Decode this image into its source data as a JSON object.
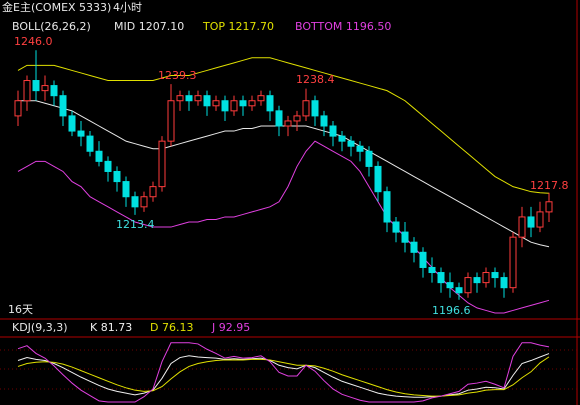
{
  "chart_data": {
    "type": "candlestick",
    "header": {
      "symbol": "金E主(COMEX 5333)",
      "period": "4小时"
    },
    "indicator": {
      "name": "BOLL(26,26,2)",
      "mid": "MID 1207.10",
      "top": "TOP 1217.70",
      "bottom": "BOTTOM 1196.50"
    },
    "annotations": [
      "1246.0",
      "1239.3",
      "1238.4",
      "1213.4",
      "1217.8",
      "1196.6"
    ],
    "period_note": "16天",
    "ylim": [
      1193,
      1250
    ],
    "ohlc": [
      [
        1233,
        1238,
        1231,
        1236
      ],
      [
        1236,
        1241,
        1234,
        1240
      ],
      [
        1240,
        1246,
        1236,
        1238
      ],
      [
        1238,
        1241,
        1236,
        1239
      ],
      [
        1239,
        1240,
        1235,
        1237
      ],
      [
        1237,
        1238,
        1231,
        1233
      ],
      [
        1233,
        1234,
        1229,
        1230
      ],
      [
        1230,
        1232,
        1227,
        1229
      ],
      [
        1229,
        1230,
        1225,
        1226
      ],
      [
        1226,
        1228,
        1223,
        1224
      ],
      [
        1224,
        1225,
        1220,
        1222
      ],
      [
        1222,
        1223,
        1218,
        1220
      ],
      [
        1220,
        1221,
        1215,
        1217
      ],
      [
        1217,
        1218,
        1213.4,
        1215
      ],
      [
        1215,
        1218,
        1214,
        1217
      ],
      [
        1217,
        1220,
        1216,
        1219
      ],
      [
        1219,
        1229,
        1218,
        1228
      ],
      [
        1228,
        1239.3,
        1227,
        1236
      ],
      [
        1236,
        1238,
        1234,
        1237
      ],
      [
        1237,
        1238,
        1234,
        1236
      ],
      [
        1236,
        1238,
        1235,
        1237
      ],
      [
        1237,
        1238,
        1233,
        1235
      ],
      [
        1235,
        1237,
        1234,
        1236
      ],
      [
        1236,
        1237,
        1232,
        1234
      ],
      [
        1234,
        1237,
        1233,
        1236
      ],
      [
        1236,
        1237,
        1233,
        1235
      ],
      [
        1235,
        1237,
        1234,
        1236
      ],
      [
        1236,
        1238,
        1235,
        1237
      ],
      [
        1237,
        1238,
        1232,
        1234
      ],
      [
        1234,
        1235,
        1229,
        1231
      ],
      [
        1231,
        1233,
        1229,
        1232
      ],
      [
        1232,
        1234,
        1230,
        1233
      ],
      [
        1233,
        1238.4,
        1232,
        1236
      ],
      [
        1236,
        1237,
        1231,
        1233
      ],
      [
        1233,
        1234,
        1229,
        1231
      ],
      [
        1231,
        1232,
        1227,
        1229
      ],
      [
        1229,
        1230,
        1226,
        1228
      ],
      [
        1228,
        1229,
        1225,
        1227
      ],
      [
        1227,
        1228,
        1224,
        1226
      ],
      [
        1226,
        1227,
        1221,
        1223
      ],
      [
        1223,
        1224,
        1216,
        1218
      ],
      [
        1218,
        1219,
        1210,
        1212
      ],
      [
        1212,
        1213,
        1208,
        1210
      ],
      [
        1210,
        1212,
        1206,
        1208
      ],
      [
        1208,
        1209,
        1204,
        1206
      ],
      [
        1206,
        1207,
        1201,
        1203
      ],
      [
        1203,
        1205,
        1200,
        1202
      ],
      [
        1202,
        1203,
        1198,
        1200
      ],
      [
        1200,
        1202,
        1197,
        1199
      ],
      [
        1199,
        1200,
        1196.6,
        1198
      ],
      [
        1198,
        1202,
        1197,
        1201
      ],
      [
        1201,
        1202,
        1198,
        1200
      ],
      [
        1200,
        1203,
        1199,
        1202
      ],
      [
        1202,
        1203,
        1199,
        1201
      ],
      [
        1201,
        1202,
        1197,
        1199
      ],
      [
        1199,
        1210,
        1198,
        1209
      ],
      [
        1209,
        1215,
        1207,
        1213
      ],
      [
        1213,
        1215,
        1209,
        1211
      ],
      [
        1211,
        1216,
        1210,
        1214
      ],
      [
        1214,
        1217.8,
        1212,
        1216
      ]
    ],
    "up_color": "#ff3c3c",
    "down_color": "#00e0e0",
    "lines": [
      {
        "name": "MID",
        "color": "#e8e8e8",
        "values": [
          1236,
          1236,
          1236,
          1235.5,
          1235,
          1234.5,
          1234,
          1233,
          1232,
          1231,
          1230,
          1229,
          1228,
          1227.5,
          1227,
          1226.5,
          1226.5,
          1227,
          1227.5,
          1228,
          1228.5,
          1229,
          1229.5,
          1230,
          1230,
          1230.5,
          1230.5,
          1231,
          1231,
          1231,
          1231,
          1231,
          1231,
          1230.5,
          1230,
          1229.5,
          1229,
          1228,
          1227,
          1226,
          1225,
          1224,
          1223,
          1222,
          1221,
          1220,
          1219,
          1218,
          1217,
          1216,
          1215,
          1214,
          1213,
          1212,
          1211,
          1210,
          1209,
          1208,
          1207.5,
          1207.1
        ]
      },
      {
        "name": "TOP",
        "color": "#e0e000",
        "values": [
          1242,
          1243,
          1243,
          1243,
          1243,
          1242.5,
          1242,
          1241.5,
          1241,
          1240.5,
          1240,
          1240,
          1240,
          1240,
          1240,
          1240,
          1240.5,
          1241,
          1241,
          1241,
          1241.5,
          1242,
          1242.5,
          1243,
          1243.5,
          1244,
          1244.5,
          1244.5,
          1244.5,
          1244,
          1243.5,
          1243,
          1242.5,
          1242,
          1241.5,
          1241,
          1240.5,
          1240,
          1239.5,
          1239,
          1238.5,
          1238,
          1237,
          1236,
          1234.5,
          1233,
          1231.5,
          1230,
          1228.5,
          1227,
          1225.5,
          1224,
          1222.5,
          1221,
          1220,
          1219,
          1218.5,
          1218,
          1217.8,
          1217.7
        ]
      },
      {
        "name": "BOTTOM",
        "color": "#e040e0",
        "values": [
          1222,
          1223,
          1224,
          1224,
          1223,
          1222,
          1220,
          1219,
          1217,
          1216,
          1215,
          1214,
          1213,
          1212,
          1211.5,
          1211,
          1211,
          1211,
          1211.5,
          1212,
          1212,
          1212.5,
          1212.5,
          1213,
          1213,
          1213.5,
          1214,
          1214.5,
          1215,
          1216,
          1219,
          1223,
          1226,
          1228,
          1227,
          1226,
          1225,
          1224,
          1222,
          1219,
          1216,
          1213,
          1211,
          1209,
          1207,
          1205,
          1203,
          1201,
          1199,
          1197.5,
          1196,
          1195,
          1194.5,
          1194,
          1194,
          1194.5,
          1195,
          1195.5,
          1196,
          1196.5
        ]
      }
    ],
    "kdj": {
      "name": "KDJ(9,3,3)",
      "k_label": "K 81.73",
      "d_label": "D 76.13",
      "j_label": "J 92.95",
      "ylim": [
        -5,
        108
      ],
      "series": [
        {
          "name": "K",
          "color": "#f0f0f0",
          "values": [
            70,
            75,
            72,
            70,
            65,
            58,
            50,
            42,
            35,
            28,
            22,
            18,
            15,
            12,
            15,
            20,
            40,
            65,
            75,
            78,
            76,
            75,
            74,
            72,
            73,
            72,
            73,
            74,
            70,
            62,
            58,
            56,
            62,
            58,
            50,
            42,
            35,
            30,
            25,
            20,
            15,
            12,
            10,
            9,
            8,
            8,
            9,
            10,
            12,
            14,
            20,
            22,
            25,
            24,
            22,
            45,
            65,
            70,
            76,
            81.73
          ]
        },
        {
          "name": "D",
          "color": "#e0e000",
          "values": [
            60,
            65,
            67,
            68,
            67,
            64,
            59,
            53,
            47,
            41,
            35,
            29,
            24,
            20,
            18,
            19,
            26,
            39,
            51,
            60,
            65,
            68,
            70,
            71,
            71,
            71,
            72,
            72,
            71,
            68,
            65,
            62,
            62,
            61,
            57,
            52,
            46,
            41,
            36,
            31,
            26,
            21,
            17,
            14,
            12,
            11,
            10,
            10,
            11,
            12,
            15,
            17,
            20,
            21,
            21,
            29,
            41,
            51,
            66,
            76.13
          ]
        },
        {
          "name": "J",
          "color": "#e040e0",
          "values": [
            90,
            95,
            82,
            74,
            61,
            46,
            32,
            20,
            11,
            2,
            0,
            0,
            0,
            0,
            9,
            22,
            68,
            100,
            100,
            100,
            98,
            89,
            82,
            74,
            77,
            74,
            75,
            78,
            68,
            50,
            44,
            44,
            62,
            52,
            36,
            22,
            13,
            8,
            3,
            0,
            0,
            0,
            0,
            0,
            0,
            2,
            7,
            10,
            14,
            18,
            30,
            32,
            35,
            30,
            24,
            77,
            100,
            100,
            96,
            92.95
          ]
        }
      ]
    }
  }
}
